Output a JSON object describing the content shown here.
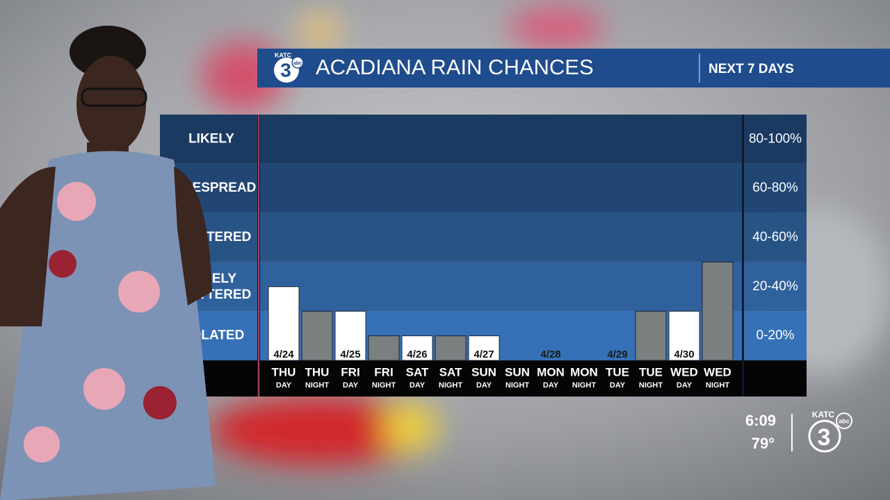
{
  "header": {
    "title": "ACADIANA RAIN CHANCES",
    "subtitle": "NEXT 7 DAYS",
    "logo": {
      "call": "KATC",
      "number": "3",
      "network": "abc"
    }
  },
  "chart_data": {
    "type": "bar",
    "categories": [
      "THU",
      "THU",
      "FRI",
      "FRI",
      "SAT",
      "SAT",
      "SUN",
      "SUN",
      "MON",
      "MON",
      "TUE",
      "TUE",
      "WED",
      "WED"
    ],
    "periods": [
      "DAY",
      "NIGHT",
      "DAY",
      "NIGHT",
      "DAY",
      "NIGHT",
      "DAY",
      "NIGHT",
      "DAY",
      "NIGHT",
      "DAY",
      "NIGHT",
      "DAY",
      "NIGHT"
    ],
    "dates": [
      "4/24",
      null,
      "4/25",
      null,
      "4/26",
      null,
      "4/27",
      null,
      "4/28",
      null,
      "4/29",
      null,
      "4/30",
      null
    ],
    "values": [
      30,
      20,
      20,
      10,
      10,
      10,
      10,
      0,
      0,
      0,
      0,
      20,
      20,
      40
    ],
    "colors": [
      "#ffffff",
      "#7a7f80",
      "#ffffff",
      "#7a7f80",
      "#ffffff",
      "#7a7f80",
      "#ffffff",
      "#7a7f80",
      "#ffffff",
      "#7a7f80",
      "#ffffff",
      "#7a7f80",
      "#ffffff",
      "#7a7f80"
    ],
    "ylim": [
      0,
      100
    ],
    "bands": [
      {
        "name": "LIKELY",
        "range": "80-100%",
        "from": 80,
        "to": 100,
        "color": "#1b3a62"
      },
      {
        "name": "WIDESPREAD",
        "range": "60-80%",
        "from": 60,
        "to": 80,
        "color": "#214673"
      },
      {
        "name": "SCATTERED",
        "range": "40-60%",
        "from": 40,
        "to": 60,
        "color": "#285385"
      },
      {
        "name": "WIDELY SCATTERED",
        "range": "20-40%",
        "from": 20,
        "to": 40,
        "color": "#2f619c"
      },
      {
        "name": "ISOLATED",
        "range": "0-20%",
        "from": 0,
        "to": 20,
        "color": "#3670b6"
      }
    ]
  },
  "corner": {
    "time": "6:09",
    "temperature": "79°",
    "logo": {
      "call": "KATC",
      "number": "3",
      "network": "abc"
    }
  }
}
